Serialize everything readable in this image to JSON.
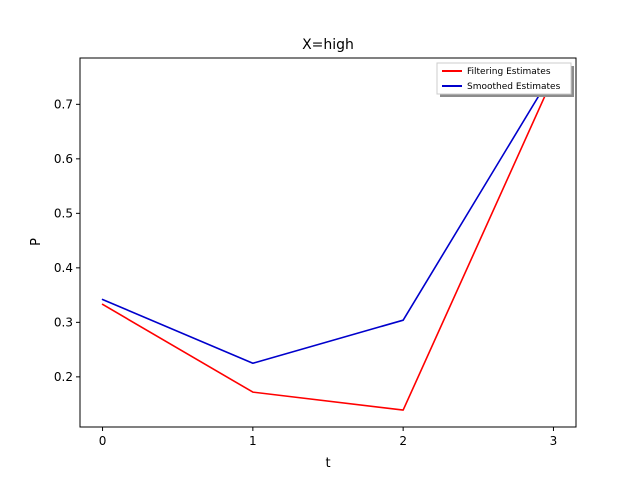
{
  "chart_data": {
    "type": "line",
    "title": "X=high",
    "xlabel": "t",
    "ylabel": "P",
    "x": [
      0,
      1,
      2,
      3
    ],
    "xlim": [
      -0.15,
      3.15
    ],
    "ylim": [
      0.108,
      0.785
    ],
    "xticks": [
      0,
      1,
      2,
      3
    ],
    "yticks": [
      0.2,
      0.3,
      0.4,
      0.5,
      0.6,
      0.7
    ],
    "ytick_labels": [
      "0.2",
      "0.3",
      "0.4",
      "0.5",
      "0.6",
      "0.7"
    ],
    "xtick_labels": [
      "0",
      "1",
      "2",
      "3"
    ],
    "grid": false,
    "legend_position": "upper-right",
    "series": [
      {
        "name": "Filtering Estimates",
        "color": "#ff0000",
        "values": [
          0.333,
          0.172,
          0.139,
          0.75
        ]
      },
      {
        "name": "Smoothed Estimates",
        "color": "#0000cc",
        "values": [
          0.342,
          0.225,
          0.304,
          0.76
        ]
      }
    ]
  }
}
